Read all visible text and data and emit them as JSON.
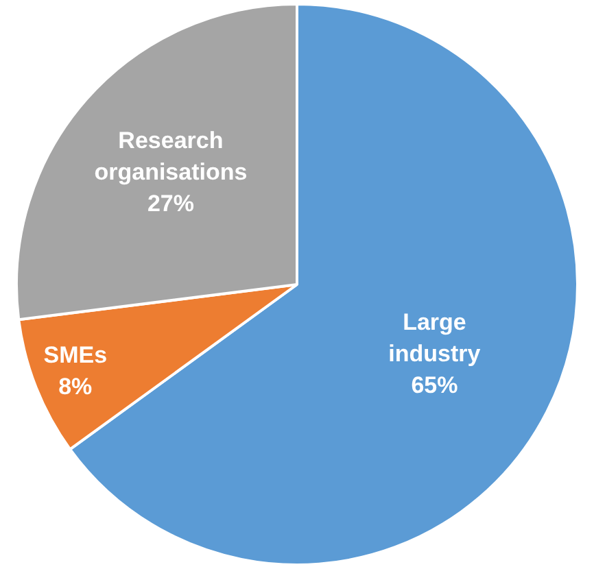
{
  "chart_data": {
    "type": "pie",
    "categories": [
      "Large industry",
      "SMEs",
      "Research organisations"
    ],
    "values": [
      65,
      8,
      27
    ],
    "colors": [
      "#5b9bd5",
      "#ed7d31",
      "#a5a5a5"
    ],
    "value_labels": [
      "65%",
      "8%",
      "27%"
    ],
    "legend": false
  }
}
